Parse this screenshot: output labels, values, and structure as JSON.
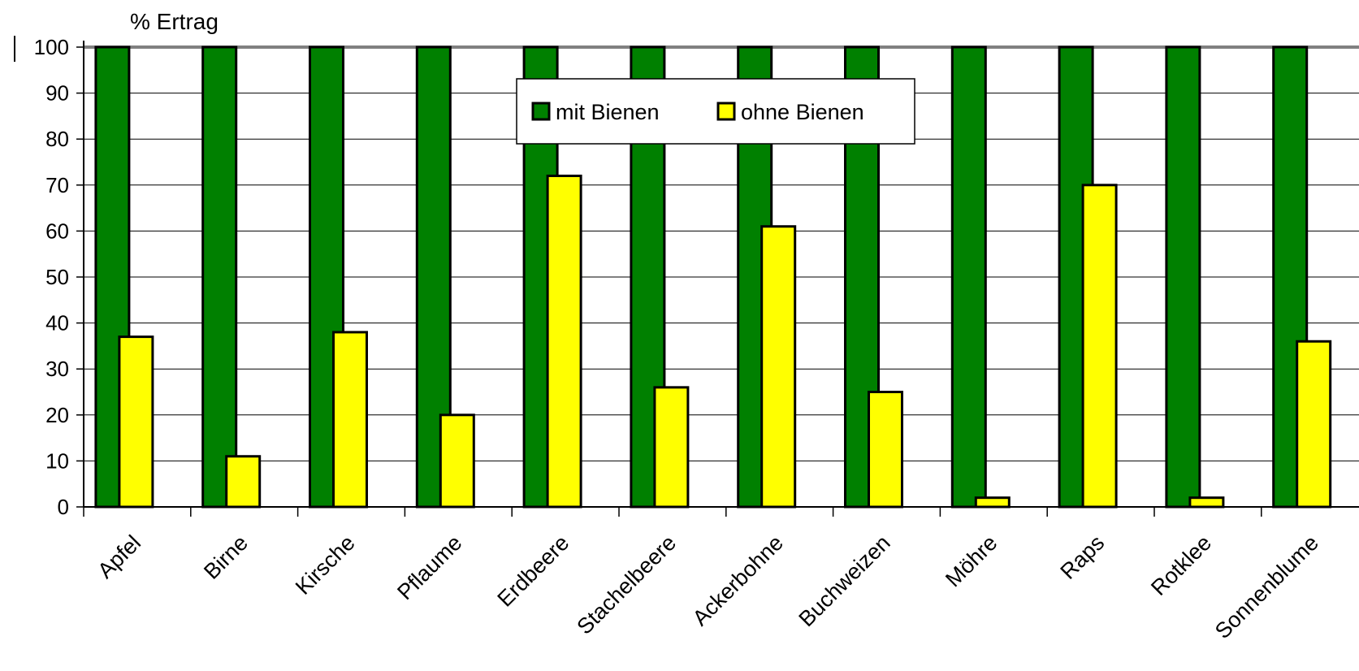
{
  "chart_data": {
    "type": "bar",
    "ylabel": "% Ertrag",
    "ylim": [
      0,
      100
    ],
    "ytick_step": 10,
    "grid": true,
    "legend_position": "top-center",
    "categories": [
      "Apfel",
      "Birne",
      "Kirsche",
      "Pflaume",
      "Erdbeere",
      "Stachelbeere",
      "Ackerbohne",
      "Buchweizen",
      "Möhre",
      "Raps",
      "Rotklee",
      "Sonnenblume"
    ],
    "series": [
      {
        "name": "mit Bienen",
        "color": "#008000",
        "values": [
          100,
          100,
          100,
          100,
          100,
          100,
          100,
          100,
          100,
          100,
          100,
          100
        ]
      },
      {
        "name": "ohne Bienen",
        "color": "#FFFF00",
        "values": [
          37,
          11,
          38,
          20,
          72,
          26,
          61,
          25,
          2,
          70,
          2,
          36
        ]
      }
    ]
  }
}
